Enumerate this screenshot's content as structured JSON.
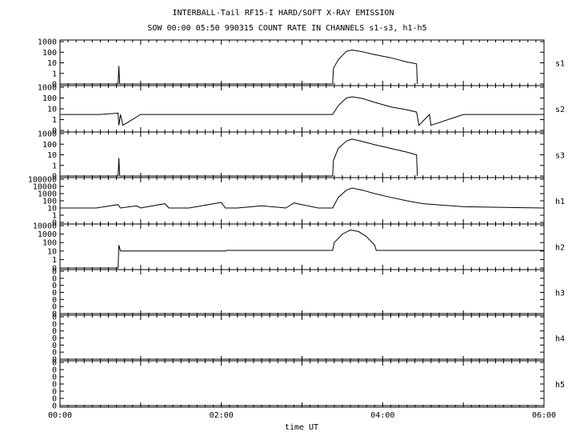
{
  "chart_data": {
    "type": "line",
    "title": "INTERBALL-Tail RF15-I HARD/SOFT X-RAY EMISSION",
    "subtitle": "SOW 00:00 05:50 990315  COUNT RATE IN CHANNELS s1-s3, h1-h5",
    "xlabel": "time UT",
    "x_ticks": [
      "00:00",
      "02:00",
      "04:00",
      "06:00"
    ],
    "x_range_hours": [
      0,
      6
    ],
    "y_scale": "log",
    "grid": false,
    "panels": [
      {
        "name": "s1",
        "y_ticks": [
          "1000",
          "100",
          "10",
          "1",
          "0"
        ],
        "series": [
          {
            "x": [
              0.0,
              0.72,
              0.73,
              0.74,
              3.38,
              3.39,
              3.45,
              3.55,
              3.62,
              3.75,
              3.9,
              4.1,
              4.3,
              4.42,
              4.43
            ],
            "y": [
              0,
              0,
              5,
              0,
              0,
              3,
              20,
              120,
              160,
              110,
              60,
              30,
              12,
              8,
              0
            ]
          }
        ]
      },
      {
        "name": "s2",
        "y_ticks": [
          "1000",
          "100",
          "10",
          "1",
          "0"
        ],
        "series": [
          {
            "x": [
              0.0,
              0.5,
              0.72,
              0.73,
              0.75,
              0.78,
              1.0,
              2.0,
              3.0,
              3.38,
              3.45,
              3.55,
              3.62,
              3.75,
              3.9,
              4.1,
              4.3,
              4.42,
              4.45,
              4.58,
              4.6,
              5.0,
              6.0
            ],
            "y": [
              3,
              3,
              4,
              0.3,
              3,
              0.3,
              3,
              3,
              3,
              3,
              20,
              100,
              130,
              90,
              40,
              15,
              8,
              5,
              0.3,
              3,
              0.3,
              3,
              3
            ]
          }
        ]
      },
      {
        "name": "s3",
        "y_ticks": [
          "1000",
          "100",
          "10",
          "1",
          "0"
        ],
        "series": [
          {
            "x": [
              0.0,
              0.72,
              0.73,
              0.74,
              3.38,
              3.39,
              3.45,
              3.55,
              3.62,
              3.75,
              3.9,
              4.1,
              4.3,
              4.42,
              4.43
            ],
            "y": [
              0,
              0,
              5,
              0,
              0,
              3,
              40,
              200,
              300,
              180,
              90,
              40,
              18,
              10,
              0
            ]
          }
        ]
      },
      {
        "name": "h1",
        "y_ticks": [
          "100000",
          "10000",
          "1000",
          "100",
          "10",
          "1",
          "0"
        ],
        "series": [
          {
            "x": [
              0.0,
              0.45,
              0.72,
              0.75,
              0.95,
              1.0,
              1.3,
              1.35,
              1.6,
              2.0,
              2.05,
              2.2,
              2.5,
              2.8,
              2.9,
              3.2,
              3.38,
              3.45,
              3.55,
              3.62,
              3.75,
              3.9,
              4.1,
              4.3,
              4.5,
              5.0,
              5.5,
              6.0
            ],
            "y": [
              10,
              10,
              30,
              10,
              20,
              10,
              40,
              10,
              10,
              60,
              10,
              10,
              20,
              10,
              50,
              10,
              10,
              300,
              3000,
              6000,
              3000,
              1000,
              300,
              100,
              40,
              15,
              12,
              10
            ]
          }
        ]
      },
      {
        "name": "h2",
        "y_ticks": [
          "10000",
          "1000",
          "100",
          "10",
          "1",
          "0"
        ],
        "series": [
          {
            "x": [
              0.0,
              0.72,
              0.73,
              0.75,
              2.05,
              2.06,
              3.38,
              3.4,
              3.5,
              3.6,
              3.7,
              3.8,
              3.9,
              3.92,
              6.0
            ],
            "y": [
              0,
              0,
              50,
              10,
              10,
              12,
              12,
              100,
              1000,
              3000,
              2000,
              500,
              50,
              12,
              12
            ]
          }
        ]
      },
      {
        "name": "h3",
        "y_ticks": [
          "0",
          "0",
          "0",
          "0",
          "0",
          "0",
          "0"
        ],
        "series": [
          {
            "x": [
              0.0,
              6.0
            ],
            "y": [
              0,
              0
            ]
          }
        ]
      },
      {
        "name": "h4",
        "y_ticks": [
          "0",
          "0",
          "0",
          "0",
          "0",
          "0",
          "0"
        ],
        "series": [
          {
            "x": [
              0.0,
              6.0
            ],
            "y": [
              0,
              0
            ]
          }
        ]
      },
      {
        "name": "h5",
        "y_ticks": [
          "0",
          "0",
          "0",
          "0",
          "0",
          "0",
          "0"
        ],
        "series": [
          {
            "x": [
              0.0,
              6.0
            ],
            "y": [
              0,
              0
            ]
          }
        ]
      }
    ]
  }
}
